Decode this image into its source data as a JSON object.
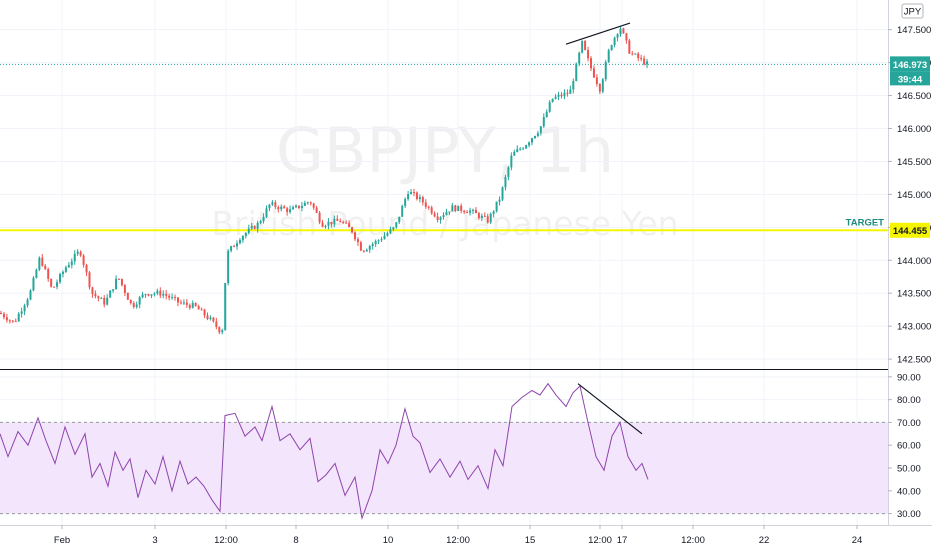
{
  "chart_data": {
    "type": "candlestick",
    "symbol": "GBPJPY",
    "interval": "1h",
    "description": "British Pound / Japanese Yen",
    "currency_badge": "JPY",
    "last_price": "146.973",
    "countdown": "39:44",
    "colors": {
      "up": "#26a69a",
      "down": "#ef5350",
      "target_line": "#f5f500",
      "rsi_line": "#8e44ad",
      "rsi_band": "#f3e5fb",
      "price_line": "#26a69a"
    },
    "price_axis": {
      "ylim": [
        142.35,
        147.95
      ],
      "ticks": [
        "142.500",
        "143.000",
        "143.500",
        "144.000",
        "144.500",
        "145.000",
        "145.500",
        "146.000",
        "146.500",
        "147.000",
        "147.500"
      ],
      "tick_values": [
        142.5,
        143.0,
        143.5,
        144.0,
        144.5,
        145.0,
        145.5,
        146.0,
        146.5,
        147.0,
        147.5
      ]
    },
    "x_axis_labels": [
      "Feb",
      "3",
      "12:00",
      "8",
      "10",
      "12:00",
      "15",
      "12:00",
      "17",
      "12:00",
      "22",
      "24"
    ],
    "target": {
      "label": "TARGET",
      "price": "144.455",
      "value": 144.455
    },
    "price_path": [
      [
        0,
        143.2
      ],
      [
        14,
        143.05
      ],
      [
        30,
        143.5
      ],
      [
        40,
        144.05
      ],
      [
        52,
        143.55
      ],
      [
        66,
        143.9
      ],
      [
        80,
        144.15
      ],
      [
        92,
        143.5
      ],
      [
        105,
        143.35
      ],
      [
        118,
        143.75
      ],
      [
        132,
        143.3
      ],
      [
        145,
        143.5
      ],
      [
        162,
        143.5
      ],
      [
        180,
        143.35
      ],
      [
        195,
        143.3
      ],
      [
        210,
        143.1
      ],
      [
        222,
        142.9
      ],
      [
        227,
        144.1
      ],
      [
        240,
        144.35
      ],
      [
        258,
        144.55
      ],
      [
        270,
        144.85
      ],
      [
        290,
        144.75
      ],
      [
        310,
        144.9
      ],
      [
        322,
        144.55
      ],
      [
        340,
        144.6
      ],
      [
        352,
        144.45
      ],
      [
        362,
        144.15
      ],
      [
        378,
        144.3
      ],
      [
        395,
        144.5
      ],
      [
        408,
        145.05
      ],
      [
        422,
        144.9
      ],
      [
        438,
        144.65
      ],
      [
        452,
        144.8
      ],
      [
        470,
        144.75
      ],
      [
        488,
        144.6
      ],
      [
        500,
        144.95
      ],
      [
        512,
        145.6
      ],
      [
        525,
        145.75
      ],
      [
        540,
        146.0
      ],
      [
        552,
        146.45
      ],
      [
        570,
        146.55
      ],
      [
        582,
        147.3
      ],
      [
        590,
        146.95
      ],
      [
        600,
        146.6
      ],
      [
        610,
        147.25
      ],
      [
        620,
        147.55
      ],
      [
        630,
        147.15
      ],
      [
        640,
        147.05
      ],
      [
        648,
        146.97
      ]
    ],
    "price_trendline": {
      "from": [
        566,
        147.28
      ],
      "to": [
        630,
        147.6
      ]
    },
    "rsi": {
      "ylim": [
        25,
        93
      ],
      "ticks": [
        "30.00",
        "40.00",
        "50.00",
        "60.00",
        "70.00",
        "80.00",
        "90.00"
      ],
      "tick_values": [
        30,
        40,
        50,
        60,
        70,
        80,
        90
      ],
      "band": [
        30,
        70
      ],
      "values": [
        [
          0,
          65
        ],
        [
          8,
          55
        ],
        [
          18,
          66
        ],
        [
          28,
          60
        ],
        [
          38,
          72
        ],
        [
          46,
          62
        ],
        [
          55,
          52
        ],
        [
          65,
          68
        ],
        [
          75,
          56
        ],
        [
          85,
          65
        ],
        [
          92,
          46
        ],
        [
          100,
          52
        ],
        [
          108,
          42
        ],
        [
          115,
          57
        ],
        [
          123,
          49
        ],
        [
          130,
          54
        ],
        [
          138,
          37
        ],
        [
          146,
          49
        ],
        [
          155,
          43
        ],
        [
          163,
          55
        ],
        [
          172,
          40
        ],
        [
          180,
          53
        ],
        [
          188,
          43
        ],
        [
          196,
          46
        ],
        [
          204,
          42
        ],
        [
          212,
          36
        ],
        [
          220,
          31
        ],
        [
          225,
          73
        ],
        [
          235,
          74
        ],
        [
          245,
          64
        ],
        [
          255,
          68
        ],
        [
          262,
          62
        ],
        [
          272,
          77
        ],
        [
          280,
          62
        ],
        [
          290,
          65
        ],
        [
          300,
          58
        ],
        [
          310,
          63
        ],
        [
          318,
          44
        ],
        [
          326,
          47
        ],
        [
          335,
          52
        ],
        [
          345,
          38
        ],
        [
          355,
          46
        ],
        [
          362,
          28
        ],
        [
          372,
          40
        ],
        [
          380,
          58
        ],
        [
          388,
          52
        ],
        [
          396,
          60
        ],
        [
          405,
          76
        ],
        [
          413,
          64
        ],
        [
          420,
          61
        ],
        [
          430,
          48
        ],
        [
          440,
          54
        ],
        [
          450,
          46
        ],
        [
          460,
          53
        ],
        [
          468,
          45
        ],
        [
          478,
          51
        ],
        [
          488,
          41
        ],
        [
          495,
          58
        ],
        [
          503,
          51
        ],
        [
          512,
          77
        ],
        [
          522,
          81
        ],
        [
          532,
          84
        ],
        [
          540,
          82
        ],
        [
          548,
          87
        ],
        [
          556,
          82
        ],
        [
          566,
          77
        ],
        [
          573,
          83
        ],
        [
          580,
          86
        ],
        [
          588,
          70
        ],
        [
          596,
          55
        ],
        [
          604,
          49
        ],
        [
          612,
          64
        ],
        [
          620,
          70
        ],
        [
          628,
          55
        ],
        [
          636,
          49
        ],
        [
          642,
          52
        ],
        [
          648,
          45
        ]
      ],
      "trendline": {
        "from": [
          578,
          87
        ],
        "to": [
          642,
          65
        ]
      }
    }
  }
}
